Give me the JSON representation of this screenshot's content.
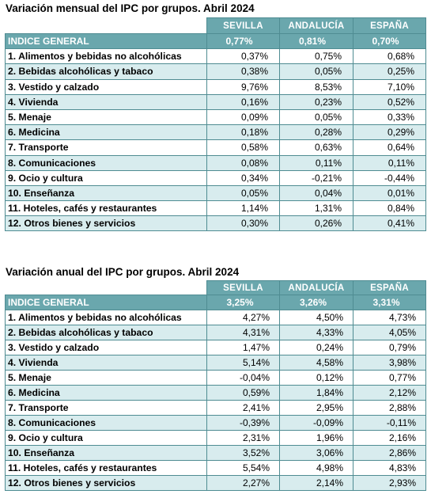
{
  "monthly": {
    "title": "Variación mensual del IPC por grupos. Abril 2024",
    "columns": [
      "SEVILLA",
      "ANDALUCÍA",
      "ESPAÑA"
    ],
    "general": {
      "label": "INDICE GENERAL",
      "values": [
        "0,77%",
        "0,81%",
        "0,70%"
      ]
    },
    "rows": [
      {
        "label": "1. Alimentos y bebidas no alcohólicas",
        "values": [
          "0,37%",
          "0,75%",
          "0,68%"
        ]
      },
      {
        "label": "2. Bebidas alcohólicas y tabaco",
        "values": [
          "0,38%",
          "0,05%",
          "0,25%"
        ]
      },
      {
        "label": "3. Vestido y calzado",
        "values": [
          "9,76%",
          "8,53%",
          "7,10%"
        ]
      },
      {
        "label": "4. Vivienda",
        "values": [
          "0,16%",
          "0,23%",
          "0,52%"
        ]
      },
      {
        "label": "5. Menaje",
        "values": [
          "0,09%",
          "0,05%",
          "0,33%"
        ]
      },
      {
        "label": "6. Medicina",
        "values": [
          "0,18%",
          "0,28%",
          "0,29%"
        ]
      },
      {
        "label": "7. Transporte",
        "values": [
          "0,58%",
          "0,63%",
          "0,64%"
        ]
      },
      {
        "label": "8. Comunicaciones",
        "values": [
          "0,08%",
          "0,11%",
          "0,11%"
        ]
      },
      {
        "label": "9. Ocio y cultura",
        "values": [
          "0,34%",
          "-0,21%",
          "-0,44%"
        ]
      },
      {
        "label": "10. Enseñanza",
        "values": [
          "0,05%",
          "0,04%",
          "0,01%"
        ]
      },
      {
        "label": "11. Hoteles, cafés y restaurantes",
        "values": [
          "1,14%",
          "1,31%",
          "0,84%"
        ]
      },
      {
        "label": "12. Otros bienes y servicios",
        "values": [
          "0,30%",
          "0,26%",
          "0,41%"
        ]
      }
    ]
  },
  "annual": {
    "title": "Variación anual del IPC por grupos. Abril 2024",
    "columns": [
      "SEVILLA",
      "ANDALUCÍA",
      "ESPAÑA"
    ],
    "general": {
      "label": "INDICE GENERAL",
      "values": [
        "3,25%",
        "3,26%",
        "3,31%"
      ]
    },
    "rows": [
      {
        "label": "1. Alimentos y bebidas no alcohólicas",
        "values": [
          "4,27%",
          "4,50%",
          "4,73%"
        ]
      },
      {
        "label": "2. Bebidas alcohólicas y tabaco",
        "values": [
          "4,31%",
          "4,33%",
          "4,05%"
        ]
      },
      {
        "label": "3. Vestido y calzado",
        "values": [
          "1,47%",
          "0,24%",
          "0,79%"
        ]
      },
      {
        "label": "4. Vivienda",
        "values": [
          "5,14%",
          "4,58%",
          "3,98%"
        ]
      },
      {
        "label": "5. Menaje",
        "values": [
          "-0,04%",
          "0,12%",
          "0,77%"
        ]
      },
      {
        "label": "6. Medicina",
        "values": [
          "0,59%",
          "1,84%",
          "2,12%"
        ]
      },
      {
        "label": "7. Transporte",
        "values": [
          "2,41%",
          "2,95%",
          "2,88%"
        ]
      },
      {
        "label": "8. Comunicaciones",
        "values": [
          "-0,39%",
          "-0,09%",
          "-0,11%"
        ]
      },
      {
        "label": "9. Ocio y cultura",
        "values": [
          "2,31%",
          "1,96%",
          "2,16%"
        ]
      },
      {
        "label": "10. Enseñanza",
        "values": [
          "3,52%",
          "3,06%",
          "2,86%"
        ]
      },
      {
        "label": "11. Hoteles, cafés y restaurantes",
        "values": [
          "5,54%",
          "4,98%",
          "4,83%"
        ]
      },
      {
        "label": "12. Otros bienes y servicios",
        "values": [
          "2,27%",
          "2,14%",
          "2,93%"
        ]
      }
    ]
  }
}
